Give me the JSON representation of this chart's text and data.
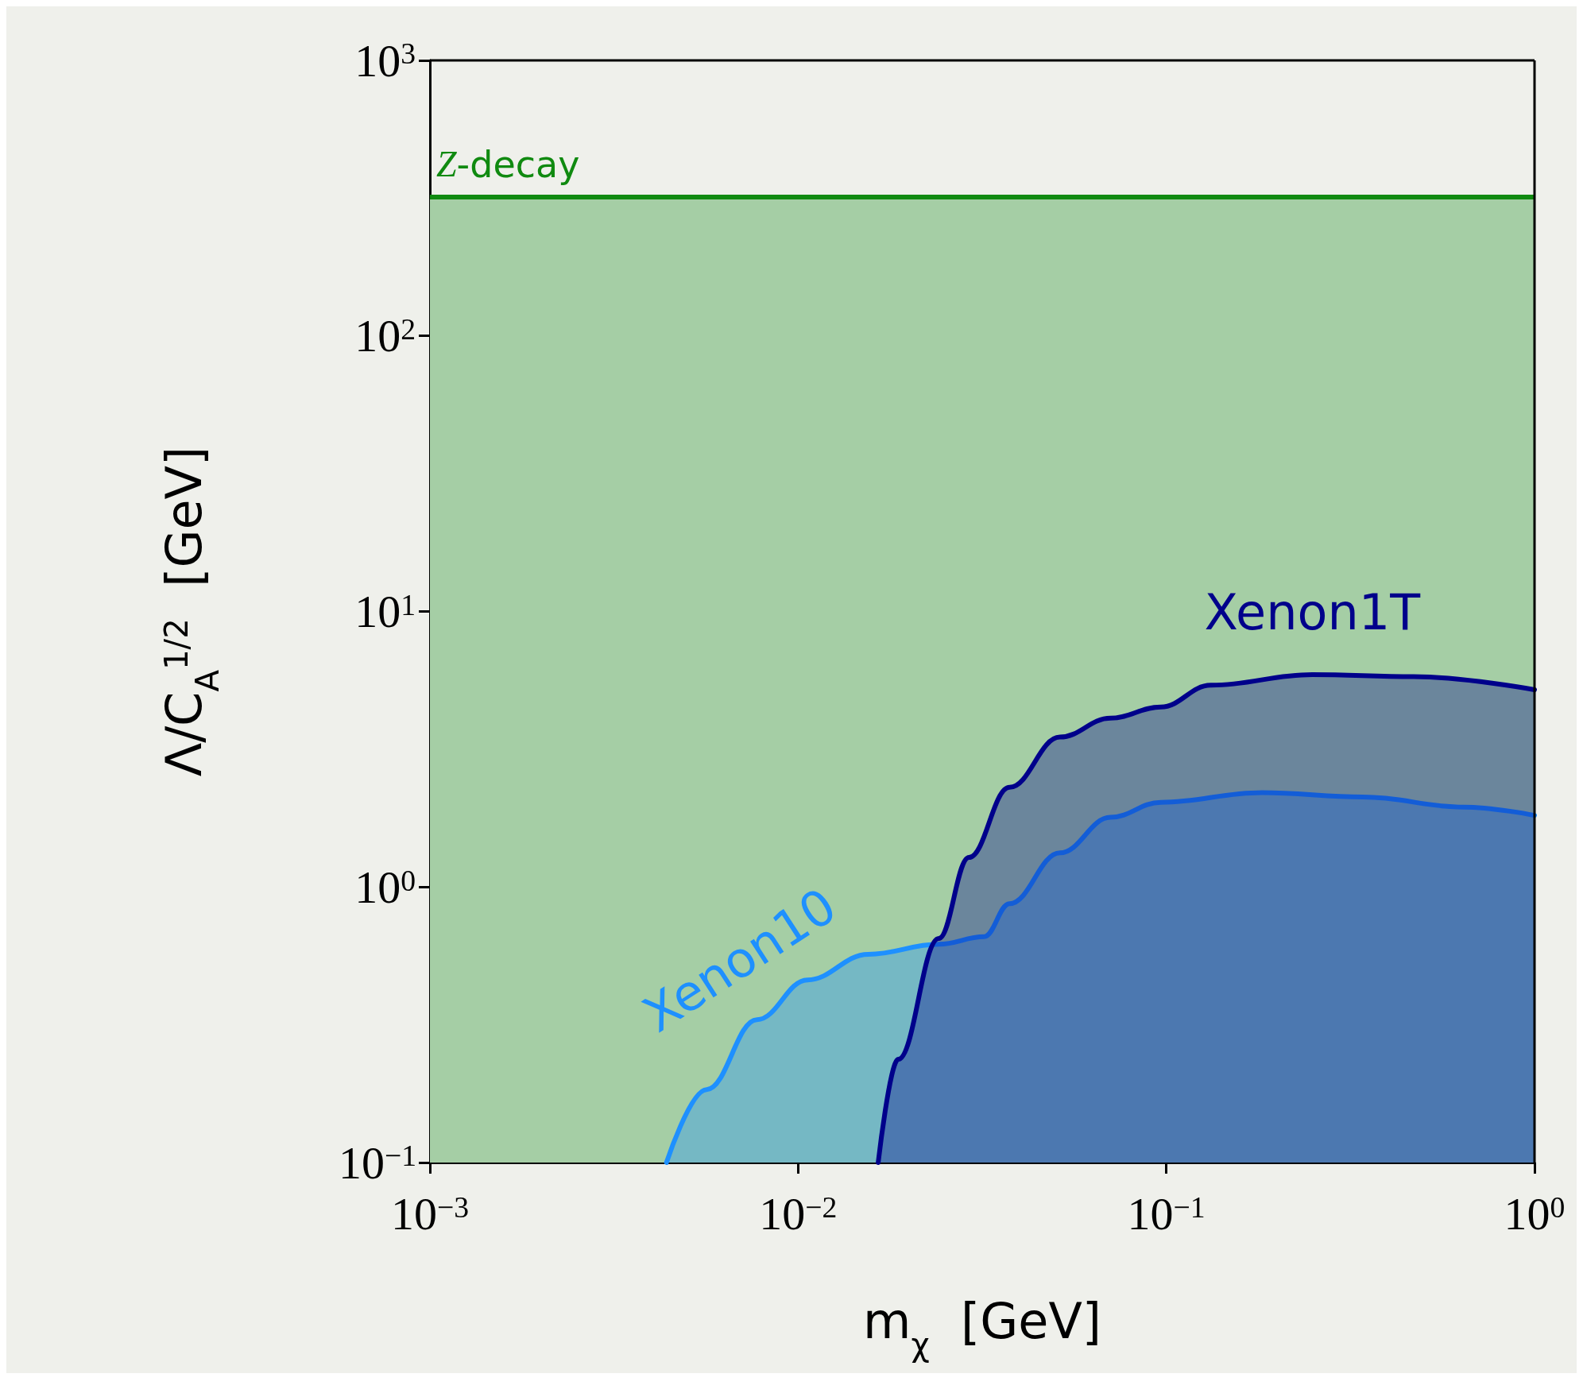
{
  "chart_data": {
    "type": "area",
    "xlabel": "m$_{χ}$  [GeV]",
    "ylabel": "Λ/C$_{A}$$^{1/2}$  [GeV]",
    "log": "xy",
    "legend": false,
    "grid": false,
    "marker": "none",
    "line_style": "solid",
    "xlim": [
      0.001,
      1
    ],
    "ylim": [
      0.1,
      1000
    ],
    "xticks": [
      {
        "value": 0.001,
        "label": "10$^{−3}$"
      },
      {
        "value": 0.01,
        "label": "10$^{−2}$"
      },
      {
        "value": 0.1,
        "label": "10$^{−1}$"
      },
      {
        "value": 1,
        "label": "10$^{0}$"
      }
    ],
    "yticks": [
      {
        "value": 0.1,
        "label": "10$^{−1}$"
      },
      {
        "value": 1,
        "label": "10$^{0}$"
      },
      {
        "value": 10,
        "label": "10$^{1}$"
      },
      {
        "value": 100,
        "label": "10$^{2}$"
      },
      {
        "value": 1000,
        "label": "10$^{3}$"
      }
    ],
    "bands": [
      {
        "axis": "y",
        "from": 0.1,
        "to": 320,
        "color": "#a5cea5"
      }
    ],
    "ref_lines": [
      {
        "axis": "y",
        "value": 320,
        "label": "Z-decay",
        "color": "#108a10"
      }
    ],
    "series": [
      {
        "name": "Xenon10",
        "color": "#1e90ff",
        "x": [
          0.00439,
          0.00564,
          0.00773,
          0.0106,
          0.0155,
          0.0241,
          0.032,
          0.0375,
          0.0514,
          0.0705,
          0.0966,
          0.182,
          0.342,
          0.643,
          1
        ],
        "values": [
          0.1,
          0.184,
          0.33,
          0.46,
          0.57,
          0.62,
          0.66,
          0.87,
          1.33,
          1.79,
          2.03,
          2.2,
          2.12,
          1.95,
          1.82
        ]
      },
      {
        "name": "Xenon1T",
        "color": "#00008b",
        "x": [
          0.0165,
          0.0187,
          0.0241,
          0.0291,
          0.0375,
          0.0514,
          0.0705,
          0.0966,
          0.132,
          0.249,
          0.469,
          1
        ],
        "values": [
          0.1,
          0.237,
          0.65,
          1.28,
          2.3,
          3.5,
          4.1,
          4.5,
          5.4,
          5.9,
          5.8,
          5.2
        ]
      }
    ]
  }
}
